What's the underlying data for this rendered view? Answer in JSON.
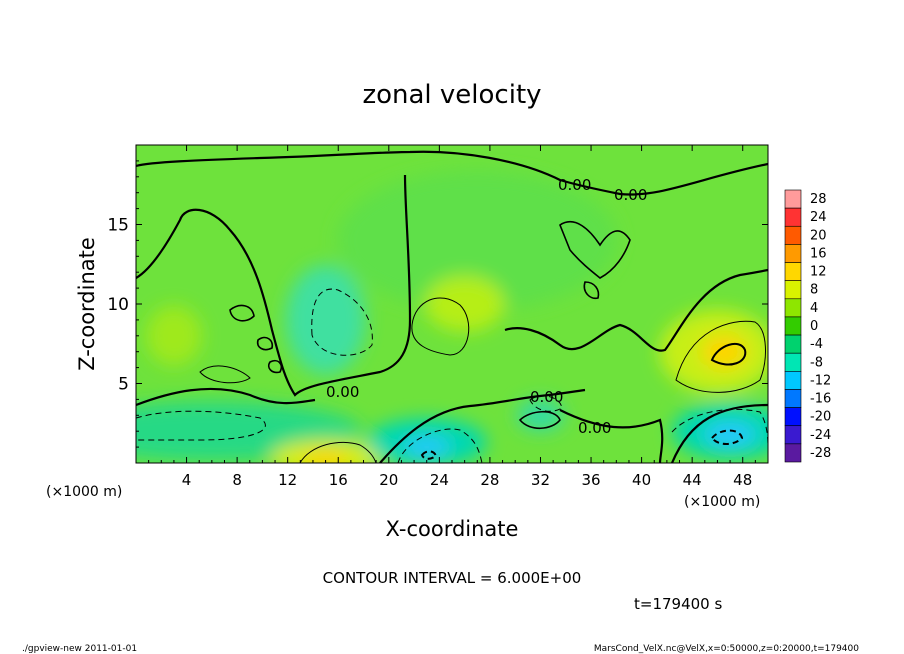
{
  "chart_data": {
    "type": "heatmap",
    "title": "zonal velocity",
    "xlabel": "X-coordinate",
    "ylabel": "Z-coordinate",
    "x_unit_note": "(×1000 m)",
    "xlim": [
      0,
      50000
    ],
    "ylim": [
      0,
      20000
    ],
    "x_ticks": [
      4,
      8,
      12,
      16,
      20,
      24,
      28,
      32,
      36,
      40,
      44,
      48
    ],
    "y_ticks": [
      5,
      10,
      15
    ],
    "contour_interval_text": "CONTOUR INTERVAL = 6.000E+00",
    "contour_labels": [
      "0.00",
      "0.00",
      "0.00",
      "0.00",
      "0.00"
    ],
    "time_text": "t=179400 s",
    "colorbar": {
      "levels": [
        28,
        24,
        20,
        16,
        12,
        8,
        4,
        0,
        -4,
        -8,
        -12,
        -16,
        -20,
        -24,
        -28
      ],
      "colors": [
        "#ff9b9b",
        "#ff3333",
        "#ff5a00",
        "#ff9a00",
        "#ffd700",
        "#d9f200",
        "#8ee600",
        "#33cc00",
        "#00d26e",
        "#00e6b4",
        "#00c8ff",
        "#0078ff",
        "#0010ff",
        "#3a1ad0",
        "#5a1aa0"
      ]
    },
    "features": [
      {
        "kind": "max",
        "x": 46,
        "z": 7,
        "value": 10
      },
      {
        "kind": "max",
        "x": 15,
        "z": 0.3,
        "value": 10
      },
      {
        "kind": "min",
        "x": 47,
        "z": 2,
        "value": -10
      },
      {
        "kind": "min",
        "x": 23,
        "z": 1,
        "value": -10
      },
      {
        "kind": "min",
        "x": 15,
        "z": 9,
        "value": -6
      }
    ]
  },
  "footer": {
    "left": "./gpview-new  2011-01-01",
    "right": "MarsCond_VelX.nc@VelX,x=0:50000,z=0:20000,t=179400"
  }
}
